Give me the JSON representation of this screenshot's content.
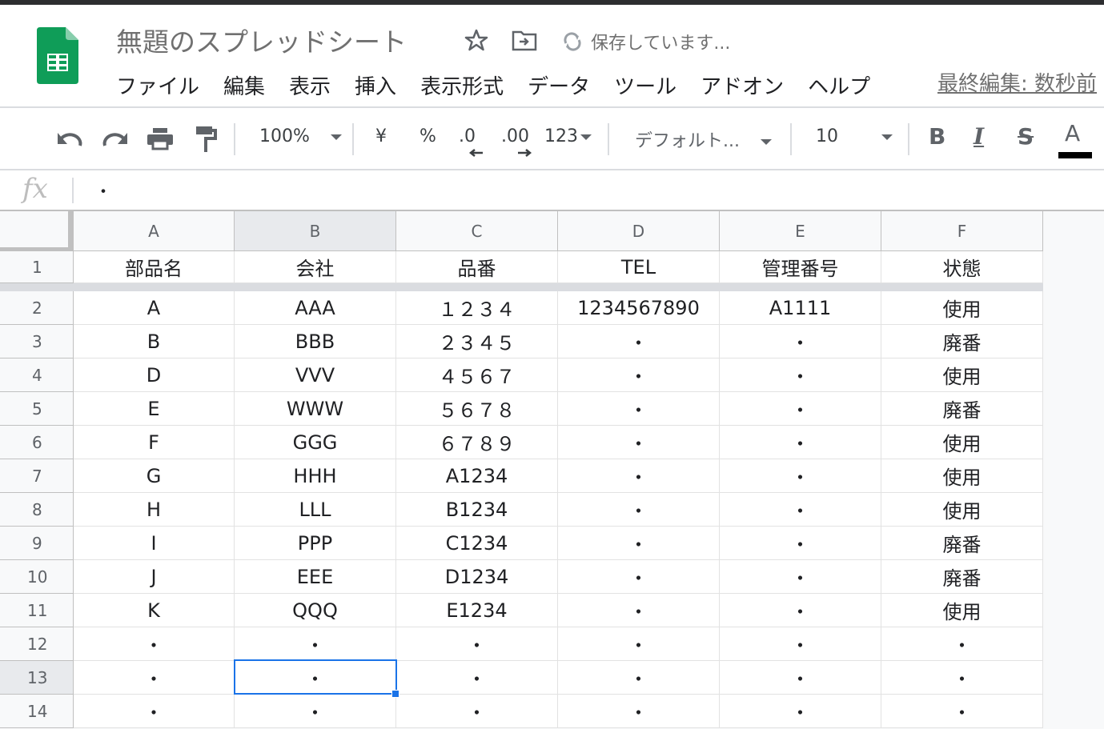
{
  "app": {
    "title": "無題のスプレッドシート",
    "status": "保存しています...",
    "last_edit": "最終編集: 数秒前",
    "brand_color": "#0f9d58"
  },
  "menu": [
    "ファイル",
    "編集",
    "表示",
    "挿入",
    "表示形式",
    "データ",
    "ツール",
    "アドオン",
    "ヘルプ"
  ],
  "toolbar": {
    "zoom": "100%",
    "currency": "¥",
    "percent": "%",
    "dec_decrease": ".0",
    "dec_increase": ".00",
    "more_formats": "123",
    "font": "デフォルト...",
    "font_size": "10",
    "bold": "B",
    "italic": "I",
    "strike": "S",
    "text_color": "A"
  },
  "formula_bar": {
    "label": "fx",
    "value": "・"
  },
  "sheet": {
    "columns": [
      "A",
      "B",
      "C",
      "D",
      "E",
      "F"
    ],
    "selected_cell": "B13",
    "rows": [
      [
        "1",
        "部品名",
        "会社",
        "品番",
        "TEL",
        "管理番号",
        "状態"
      ],
      [
        "2",
        "A",
        "AAA",
        "１２３４",
        "1234567890",
        "A1111",
        "使用"
      ],
      [
        "3",
        "B",
        "BBB",
        "２３４５",
        "・",
        "・",
        "廃番"
      ],
      [
        "4",
        "D",
        "VVV",
        "４５６７",
        "・",
        "・",
        "使用"
      ],
      [
        "5",
        "E",
        "WWW",
        "５６７８",
        "・",
        "・",
        "廃番"
      ],
      [
        "6",
        "F",
        "GGG",
        "６７８９",
        "・",
        "・",
        "使用"
      ],
      [
        "7",
        "G",
        "HHH",
        "A1234",
        "・",
        "・",
        "使用"
      ],
      [
        "8",
        "H",
        "LLL",
        "B1234",
        "・",
        "・",
        "使用"
      ],
      [
        "9",
        "I",
        "PPP",
        "C1234",
        "・",
        "・",
        "廃番"
      ],
      [
        "10",
        "J",
        "EEE",
        "D1234",
        "・",
        "・",
        "廃番"
      ],
      [
        "11",
        "K",
        "QQQ",
        "E1234",
        "・",
        "・",
        "使用"
      ],
      [
        "12",
        "・",
        "・",
        "・",
        "・",
        "・",
        "・"
      ],
      [
        "13",
        "・",
        "・",
        "・",
        "・",
        "・",
        "・"
      ],
      [
        "14",
        "・",
        "・",
        "・",
        "・",
        "・",
        "・"
      ]
    ]
  }
}
